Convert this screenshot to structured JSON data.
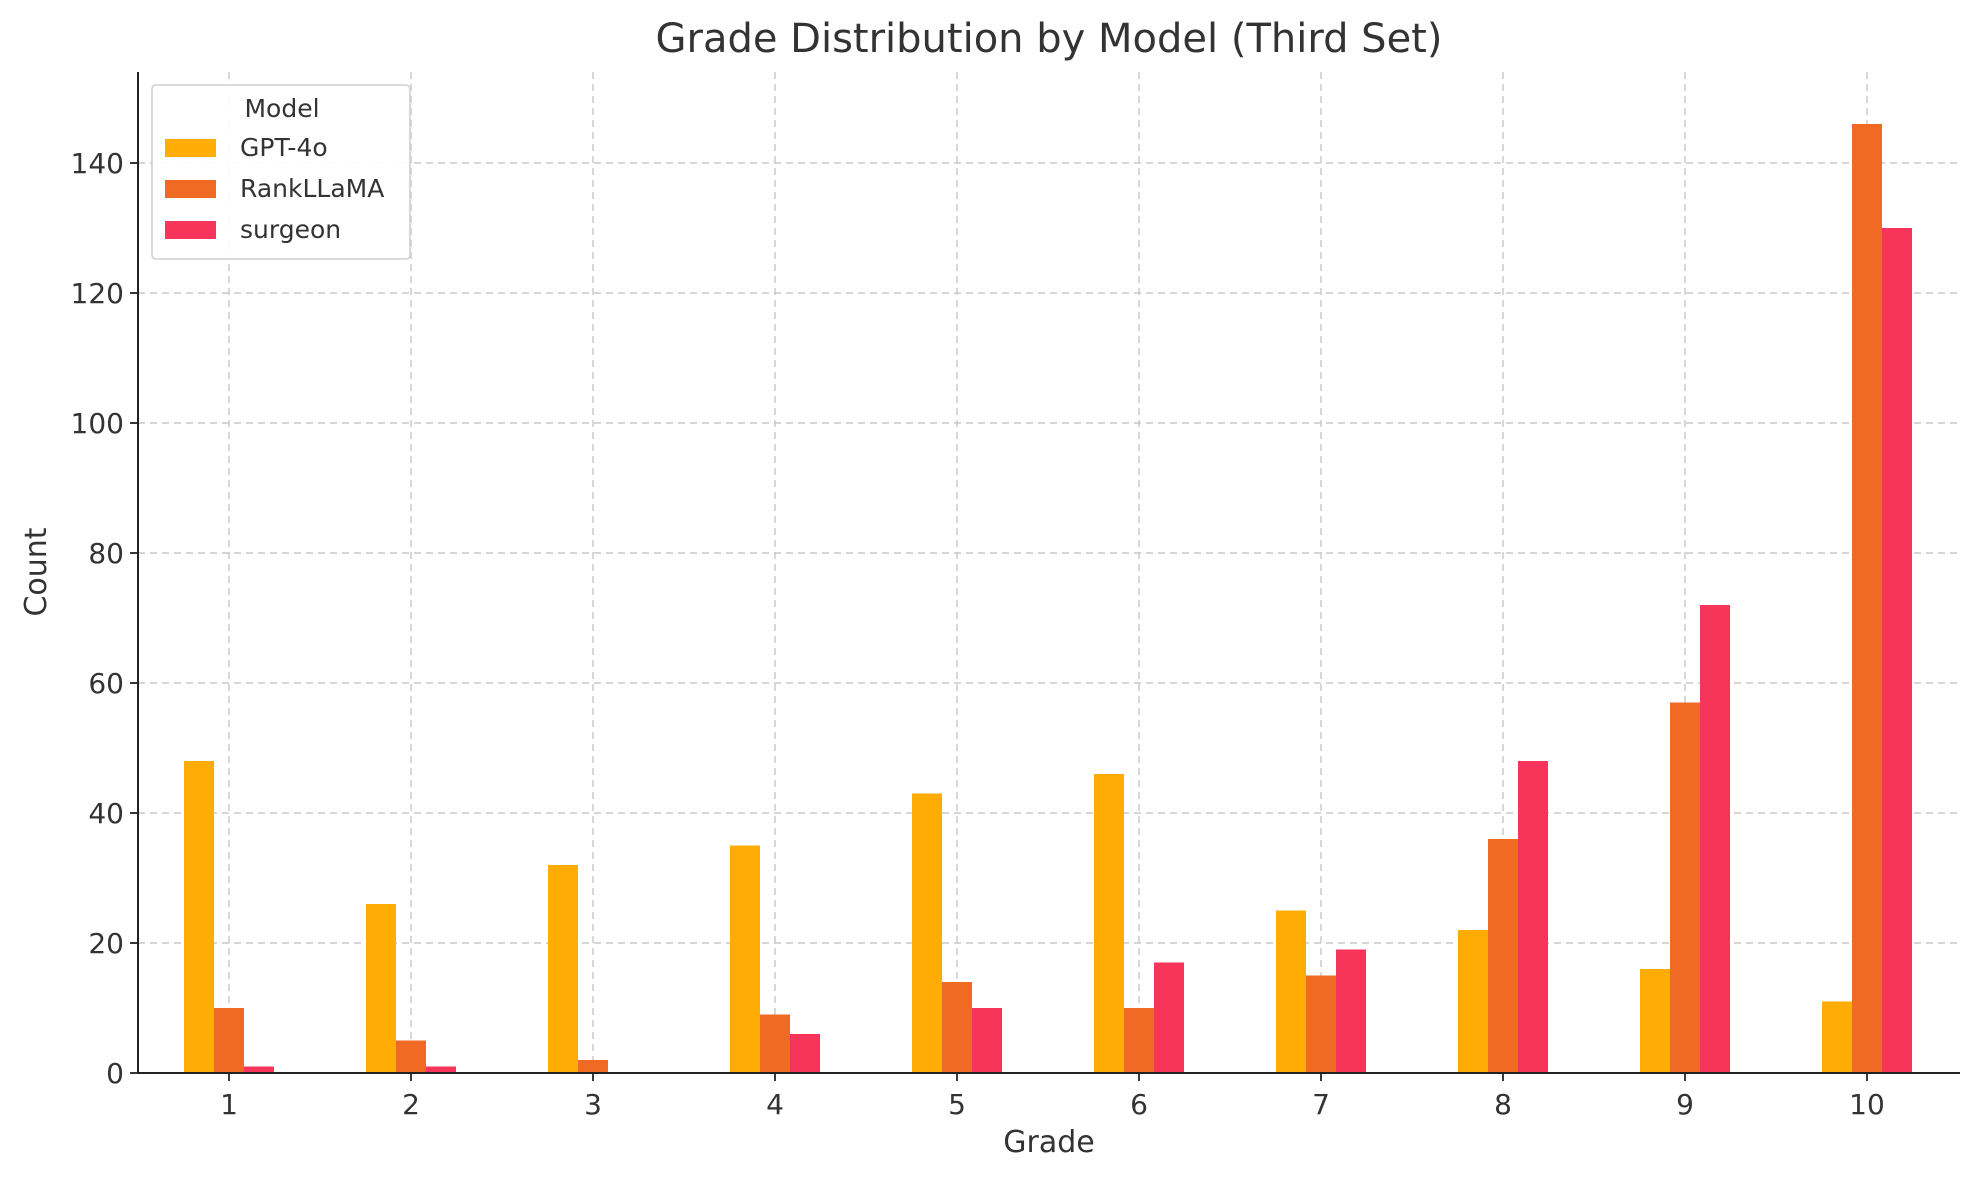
{
  "chart_data": {
    "type": "bar",
    "title": "Grade Distribution by Model (Third Set)",
    "xlabel": "Grade",
    "ylabel": "Count",
    "categories": [
      "1",
      "2",
      "3",
      "4",
      "5",
      "6",
      "7",
      "8",
      "9",
      "10"
    ],
    "series": [
      {
        "name": "GPT-4o",
        "color": "#ffad04",
        "values": [
          48,
          26,
          32,
          35,
          43,
          46,
          25,
          22,
          16,
          11
        ]
      },
      {
        "name": "RankLLaMA",
        "color": "#f06a23",
        "values": [
          10,
          5,
          2,
          9,
          14,
          10,
          15,
          36,
          57,
          146
        ]
      },
      {
        "name": "surgeon",
        "color": "#f7345a",
        "values": [
          1,
          1,
          0,
          6,
          10,
          17,
          19,
          48,
          72,
          130
        ]
      }
    ],
    "ylim": [
      0,
      154
    ],
    "yticks": [
      0,
      20,
      40,
      60,
      80,
      100,
      120,
      140
    ],
    "grid": true,
    "legend": {
      "title": "Model",
      "position": "top-left"
    }
  }
}
